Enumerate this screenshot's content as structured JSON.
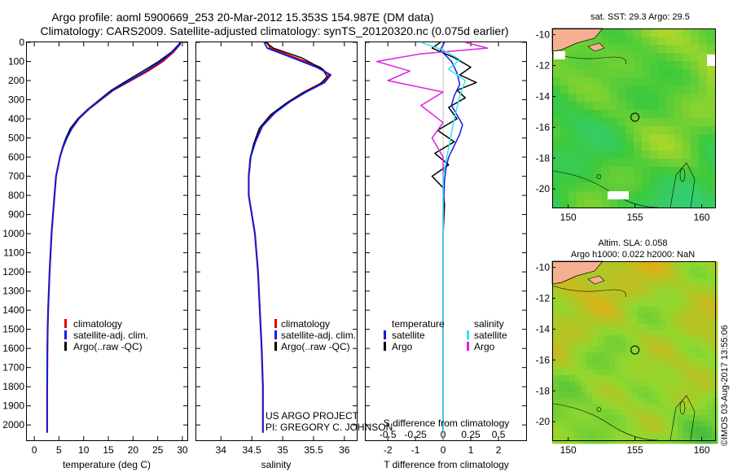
{
  "header": {
    "line1": "Argo profile: aoml 5900669_253 20-Mar-2012 15.353S 154.987E (DM data)",
    "line2": "Climatology: CARS2009. Satellite-adjusted climatology: synTS_20120320.nc (0.075d earlier)"
  },
  "colors": {
    "climatology": "#e00000",
    "satellite": "#0a1ee6",
    "argo": "#000000",
    "sal_satellite": "#2ee8e8",
    "sal_argo": "#e020e0"
  },
  "chart_data": [
    {
      "type": "line",
      "panel": "temperature",
      "xlabel": "temperature (deg C)",
      "xlim": [
        -1.5,
        31
      ],
      "xticks": [
        0,
        5,
        10,
        15,
        20,
        25,
        30
      ],
      "ylim": [
        2080,
        0
      ],
      "yticks": [
        0,
        100,
        200,
        300,
        400,
        500,
        600,
        700,
        800,
        900,
        1000,
        1100,
        1200,
        1300,
        1400,
        1500,
        1600,
        1700,
        1800,
        1900,
        2000
      ],
      "legend": [
        "climatology",
        "satellite-adj. clim.",
        "Argo(..raw -QC)"
      ],
      "series": [
        {
          "name": "climatology",
          "color_key": "climatology",
          "x": [
            29.6,
            29.5,
            28.2,
            26.0,
            23.0,
            19.5,
            16.0,
            13.5,
            11.0,
            9.0,
            7.6,
            6.6,
            5.8,
            5.2,
            4.8,
            4.4,
            4.1,
            3.8,
            3.5,
            3.3,
            3.1,
            2.95,
            2.8,
            2.7,
            2.65,
            2.6,
            2.6
          ],
          "y": [
            0,
            10,
            50,
            100,
            150,
            200,
            250,
            300,
            350,
            400,
            450,
            500,
            550,
            600,
            650,
            700,
            800,
            900,
            1000,
            1100,
            1200,
            1300,
            1400,
            1500,
            1600,
            1800,
            2040
          ]
        },
        {
          "name": "satellite-adj. clim.",
          "color_key": "satellite",
          "x": [
            29.7,
            29.5,
            28.0,
            25.6,
            22.6,
            19.3,
            15.9,
            13.4,
            10.9,
            9.0,
            7.6,
            6.6,
            5.8,
            5.2,
            4.8,
            4.4,
            4.1,
            3.8,
            3.5,
            3.3,
            3.1,
            2.95,
            2.8,
            2.7,
            2.65,
            2.6,
            2.6
          ],
          "y": [
            0,
            10,
            50,
            100,
            150,
            200,
            250,
            300,
            350,
            400,
            450,
            500,
            550,
            600,
            650,
            700,
            800,
            900,
            1000,
            1100,
            1200,
            1300,
            1400,
            1500,
            1600,
            1800,
            2040
          ]
        },
        {
          "name": "Argo(..raw -QC)",
          "color_key": "argo",
          "x": [
            29.5,
            29.3,
            27.8,
            25.2,
            22.0,
            18.8,
            15.6,
            13.2,
            10.8,
            8.8,
            7.3,
            6.4,
            5.7,
            5.2,
            4.8,
            4.4,
            4.1,
            3.8,
            3.5,
            3.3,
            3.1,
            2.95,
            2.8,
            2.7,
            2.65,
            2.6,
            2.6
          ],
          "y": [
            0,
            10,
            50,
            100,
            150,
            200,
            250,
            300,
            350,
            400,
            450,
            500,
            550,
            600,
            650,
            700,
            800,
            900,
            1000,
            1100,
            1200,
            1300,
            1400,
            1500,
            1600,
            1800,
            2040
          ]
        }
      ]
    },
    {
      "type": "line",
      "panel": "salinity",
      "xlabel": "salinity",
      "xlim": [
        33.6,
        36.2
      ],
      "xticks": [
        34,
        34.5,
        35,
        35.5,
        36
      ],
      "xticklabels": [
        "34",
        "34.5",
        "35",
        "35.5",
        "36"
      ],
      "ylim": [
        2080,
        0
      ],
      "legend": [
        "climatology",
        "satellite-adj. clim.",
        "Argo(..raw -QC)"
      ],
      "series": [
        {
          "name": "climatology",
          "color_key": "climatology",
          "x": [
            34.75,
            34.8,
            35.2,
            35.6,
            35.75,
            35.65,
            35.35,
            35.1,
            34.85,
            34.65,
            34.55,
            34.48,
            34.45,
            34.45,
            34.5,
            34.55,
            34.6,
            34.63,
            34.66,
            34.68,
            34.68
          ],
          "y": [
            0,
            30,
            80,
            130,
            170,
            210,
            260,
            310,
            370,
            440,
            520,
            600,
            700,
            800,
            900,
            1000,
            1200,
            1400,
            1600,
            1800,
            2040
          ]
        },
        {
          "name": "satellite-adj. clim.",
          "color_key": "satellite",
          "x": [
            34.7,
            34.75,
            35.15,
            35.55,
            35.78,
            35.68,
            35.38,
            35.12,
            34.87,
            34.67,
            34.56,
            34.48,
            34.45,
            34.45,
            34.5,
            34.55,
            34.6,
            34.63,
            34.66,
            34.68,
            34.68
          ],
          "y": [
            0,
            30,
            80,
            130,
            170,
            210,
            260,
            310,
            370,
            440,
            520,
            600,
            700,
            800,
            900,
            1000,
            1200,
            1400,
            1600,
            1800,
            2040
          ]
        },
        {
          "name": "Argo(..raw -QC)",
          "color_key": "argo",
          "x": [
            34.72,
            34.85,
            35.3,
            35.65,
            35.72,
            35.6,
            35.3,
            35.05,
            34.8,
            34.62,
            34.53,
            34.47,
            34.45,
            34.45,
            34.5,
            34.55,
            34.6,
            34.63,
            34.66,
            34.68,
            34.68
          ],
          "y": [
            0,
            30,
            80,
            140,
            180,
            220,
            270,
            320,
            380,
            450,
            530,
            610,
            700,
            800,
            900,
            1000,
            1200,
            1400,
            1600,
            1800,
            2040
          ]
        }
      ]
    },
    {
      "type": "line",
      "panel": "difference",
      "xlabel": "T difference from climatology",
      "xlabel_top": "S difference from climatology",
      "t_xlim": [
        -2.8,
        3.0
      ],
      "t_xticks": [
        -2,
        -1,
        0,
        1,
        2
      ],
      "s_xticks": [
        -0.5,
        -0.25,
        0,
        0.25,
        0.5
      ],
      "s_xticklabels": [
        "-0.5",
        "-0.25",
        "0",
        "0.25",
        "0.5"
      ],
      "s_scale_note": "S plotted at 4x T scale",
      "ylim": [
        2080,
        0
      ],
      "legend": {
        "temperature_title": "temperature",
        "salinity_title": "salinity",
        "t_items": [
          "satellite",
          "Argo"
        ],
        "s_items": [
          "satellite",
          "Argo"
        ]
      },
      "series": [
        {
          "name": "T satellite",
          "color_key": "satellite",
          "x": [
            0.05,
            -0.1,
            0.3,
            0.5,
            0.6,
            0.4,
            0.3,
            0.5,
            0.7,
            0.6,
            0.4,
            0.2,
            0.1,
            0.05,
            0.03,
            0.0,
            0.0,
            0.0,
            0.0
          ],
          "y": [
            0,
            40,
            100,
            160,
            220,
            280,
            330,
            380,
            430,
            480,
            540,
            600,
            660,
            720,
            800,
            900,
            1200,
            1600,
            2040
          ]
        },
        {
          "name": "T Argo",
          "color_key": "argo",
          "x": [
            -0.1,
            -0.4,
            0.4,
            1.0,
            0.6,
            1.2,
            0.5,
            0.8,
            0.2,
            0.5,
            -0.2,
            0.4,
            -0.3,
            0.2,
            -0.4,
            0.0,
            0.05,
            0.0,
            0.0,
            0.0
          ],
          "y": [
            0,
            30,
            80,
            130,
            170,
            210,
            250,
            290,
            340,
            400,
            460,
            520,
            580,
            640,
            700,
            760,
            850,
            1000,
            1500,
            2040
          ]
        },
        {
          "name": "S satellite",
          "color_key": "sal_satellite",
          "x": [
            -0.2,
            0.0,
            0.15,
            0.05,
            0.2,
            0.15,
            0.1,
            0.05,
            0.0,
            0.0,
            0.0,
            0.0
          ],
          "y": [
            0,
            40,
            90,
            140,
            200,
            280,
            400,
            550,
            700,
            900,
            1400,
            2040
          ]
        },
        {
          "name": "S Argo",
          "color_key": "sal_argo",
          "x": [
            0.2,
            0.4,
            -0.2,
            -0.6,
            -0.3,
            -0.5,
            0.0,
            -0.2,
            0.0,
            -0.1,
            0.0,
            0.0,
            0.0
          ],
          "y": [
            0,
            30,
            60,
            100,
            150,
            200,
            260,
            330,
            420,
            500,
            600,
            1000,
            2040
          ]
        }
      ]
    },
    {
      "type": "heatmap",
      "panel": "map_sst",
      "title": "sat. SST: 29.3 Argo: 29.5",
      "xticks": [
        150,
        155,
        160
      ],
      "yticks": [
        -10,
        -12,
        -14,
        -16,
        -18,
        -20
      ],
      "xlim": [
        148.8,
        161
      ],
      "ylim": [
        -21.2,
        -9.6
      ],
      "float_position": [
        155.0,
        -15.35
      ]
    },
    {
      "type": "heatmap",
      "panel": "map_sla",
      "title": "Altim. SLA: 0.058",
      "subtitle": "Argo h1000: 0.022 h2000: NaN",
      "xticks": [
        150,
        155,
        160
      ],
      "yticks": [
        -10,
        -12,
        -14,
        -16,
        -18,
        -20
      ],
      "xlim": [
        148.8,
        161
      ],
      "ylim": [
        -21.2,
        -9.6
      ],
      "float_position": [
        155.0,
        -15.35
      ]
    }
  ],
  "texts": {
    "us_argo": "US ARGO PROJECT",
    "pi": "PI: GREGORY C. JOHNSON",
    "watermark": "©IMOS 03-Aug-2017 13:55:06"
  }
}
